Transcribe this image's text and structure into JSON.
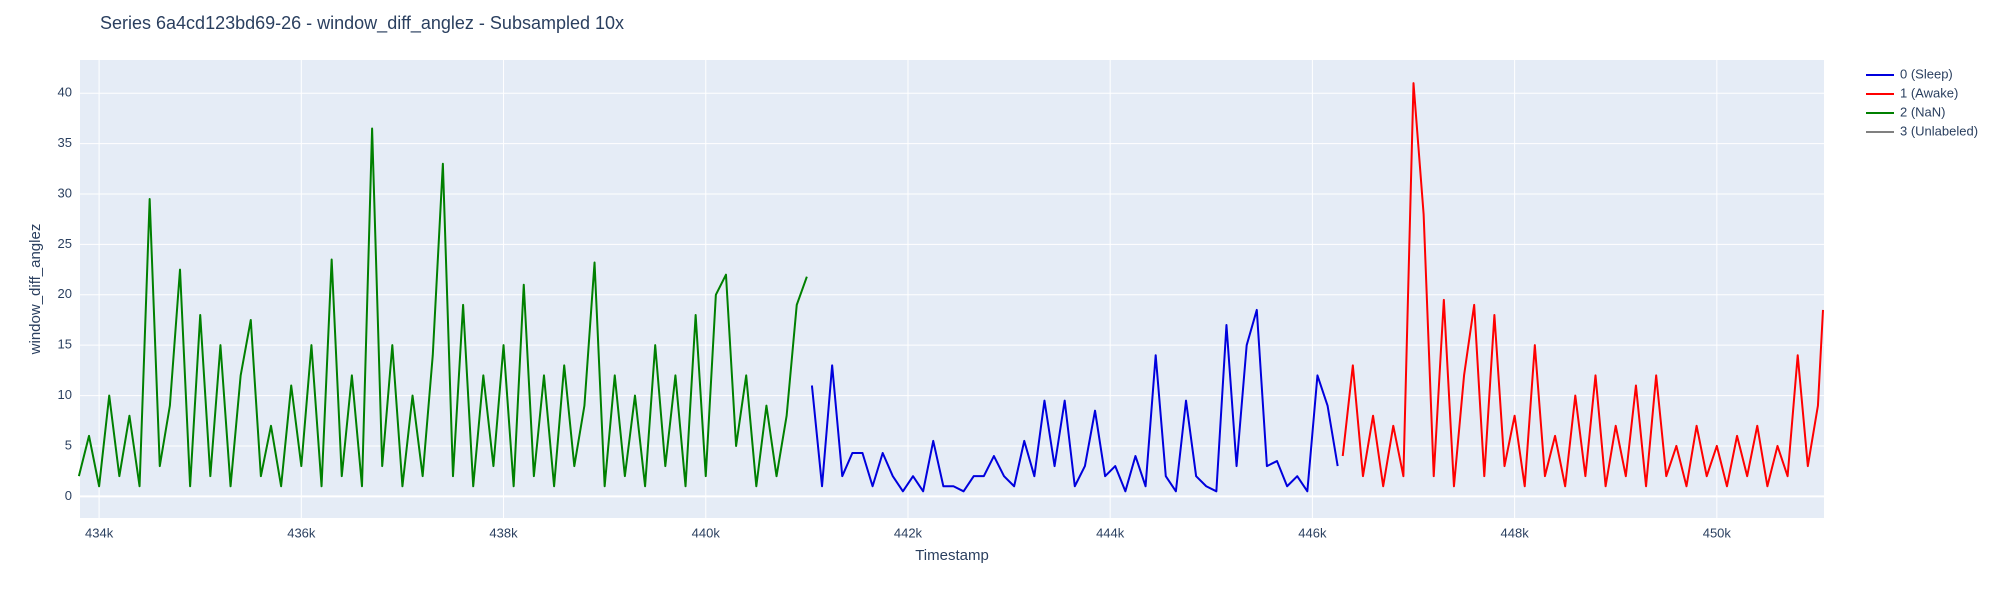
{
  "chart_data": {
    "type": "line",
    "title": "Series 6a4cd123bd69-26 - window_diff_anglez - Subsampled 10x",
    "x_label": "Timestamp",
    "y_label": "window_diff_anglez",
    "xlim": [
      433811,
      451060
    ],
    "ylim": [
      -2.15,
      43.3
    ],
    "xticks": [
      {
        "value": 434000,
        "label": "434k"
      },
      {
        "value": 436000,
        "label": "436k"
      },
      {
        "value": 438000,
        "label": "438k"
      },
      {
        "value": 440000,
        "label": "440k"
      },
      {
        "value": 442000,
        "label": "442k"
      },
      {
        "value": 444000,
        "label": "444k"
      },
      {
        "value": 446000,
        "label": "446k"
      },
      {
        "value": 448000,
        "label": "448k"
      },
      {
        "value": 450000,
        "label": "450k"
      }
    ],
    "yticks": [
      0,
      5,
      10,
      15,
      20,
      25,
      30,
      35,
      40
    ],
    "grid": true,
    "legend": "right",
    "series": [
      {
        "name": "0 (Sleep)",
        "color": "#0000dd",
        "x": [
          441050,
          441150,
          441250,
          441350,
          441450,
          441550,
          441650,
          441750,
          441850,
          441950,
          442050,
          442150,
          442250,
          442350,
          442450,
          442550,
          442650,
          442750,
          442850,
          442950,
          443050,
          443150,
          443250,
          443350,
          443450,
          443550,
          443650,
          443750,
          443850,
          443950,
          444050,
          444150,
          444250,
          444350,
          444450,
          444550,
          444650,
          444750,
          444850,
          444950,
          445050,
          445150,
          445250,
          445350,
          445450,
          445550,
          445650,
          445750,
          445850,
          445950,
          446050,
          446150,
          446250
        ],
        "values": [
          11,
          1,
          13,
          2,
          4.3,
          4.3,
          1,
          4.3,
          2,
          0.5,
          2,
          0.5,
          5.5,
          1,
          1,
          0.5,
          2,
          2,
          4,
          2,
          1,
          5.5,
          2,
          9.5,
          3,
          9.5,
          1,
          3,
          8.5,
          2,
          3,
          0.5,
          4,
          1,
          14,
          2,
          0.5,
          9.5,
          2,
          1,
          0.5,
          17,
          3,
          15,
          18.5,
          3,
          3.5,
          1,
          2,
          0.5,
          12,
          9,
          3
        ]
      },
      {
        "name": "1 (Awake)",
        "color": "#ff0000",
        "x": [
          446300,
          446400,
          446500,
          446600,
          446700,
          446800,
          446900,
          447000,
          447100,
          447200,
          447300,
          447400,
          447500,
          447600,
          447700,
          447800,
          447900,
          448000,
          448100,
          448200,
          448300,
          448400,
          448500,
          448600,
          448700,
          448800,
          448900,
          449000,
          449100,
          449200,
          449300,
          449400,
          449500,
          449600,
          449700,
          449800,
          449900,
          450000,
          450100,
          450200,
          450300,
          450400,
          450500,
          450600,
          450700,
          450800,
          450900,
          451000,
          451050
        ],
        "values": [
          4,
          13,
          2,
          8,
          1,
          7,
          2,
          41,
          28,
          2,
          19.5,
          1,
          12,
          19,
          2,
          18,
          3,
          8,
          1,
          15,
          2,
          6,
          1,
          10,
          2,
          12,
          1,
          7,
          2,
          11,
          1,
          12,
          2,
          5,
          1,
          7,
          2,
          5,
          1,
          6,
          2,
          7,
          1,
          5,
          2,
          14,
          3,
          9,
          18.5
        ]
      },
      {
        "name": "2 (NaN)",
        "color": "#008000",
        "x": [
          433800,
          433900,
          434000,
          434100,
          434200,
          434300,
          434400,
          434500,
          434600,
          434700,
          434800,
          434900,
          435000,
          435100,
          435200,
          435300,
          435400,
          435500,
          435600,
          435700,
          435800,
          435900,
          436000,
          436100,
          436200,
          436300,
          436400,
          436500,
          436600,
          436700,
          436800,
          436900,
          437000,
          437100,
          437200,
          437300,
          437400,
          437500,
          437600,
          437700,
          437800,
          437900,
          438000,
          438100,
          438200,
          438300,
          438400,
          438500,
          438600,
          438700,
          438800,
          438900,
          439000,
          439100,
          439200,
          439300,
          439400,
          439500,
          439600,
          439700,
          439800,
          439900,
          440000,
          440100,
          440200,
          440300,
          440400,
          440500,
          440600,
          440700,
          440800,
          440900,
          441000
        ],
        "values": [
          2,
          6,
          1,
          10,
          2,
          8,
          1,
          29.5,
          3,
          9,
          22.5,
          1,
          18,
          2,
          15,
          1,
          12,
          17.5,
          2,
          7,
          1,
          11,
          3,
          15,
          1,
          23.5,
          2,
          12,
          1,
          36.5,
          3,
          15,
          1,
          10,
          2,
          14,
          33,
          2,
          19,
          1,
          12,
          3,
          15,
          1,
          21,
          2,
          12,
          1,
          13,
          3,
          9,
          23.2,
          1,
          12,
          2,
          10,
          1,
          15,
          3,
          12,
          1,
          18,
          2,
          20,
          22,
          5,
          12,
          1,
          9,
          2,
          8,
          19,
          21.8
        ]
      },
      {
        "name": "3 (Unlabeled)",
        "color": "#808080",
        "x": [],
        "values": []
      }
    ]
  }
}
